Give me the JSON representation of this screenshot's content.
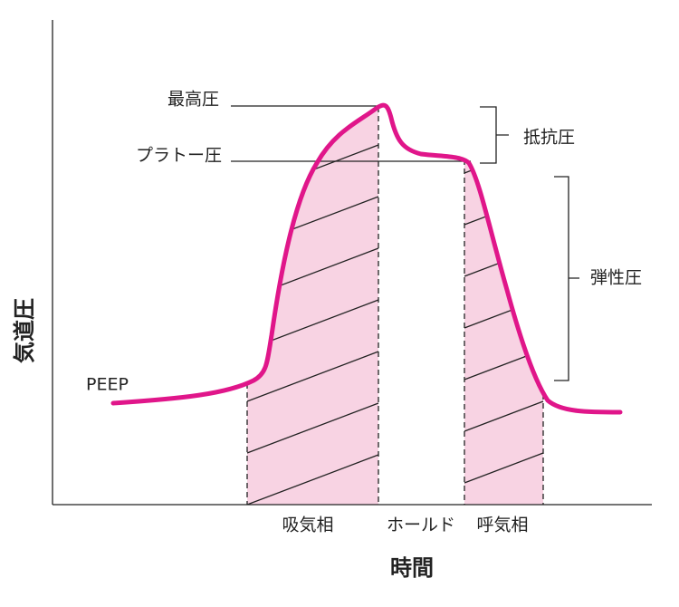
{
  "y_axis_label": "気道圧",
  "x_axis_label": "時間",
  "labels": {
    "peak": "最高圧",
    "plateau": "プラトー圧",
    "resistive": "抵抗圧",
    "elastic": "弾性圧",
    "peep": "PEEP"
  },
  "phases": [
    "吸気相",
    "ホールド",
    "呼気相"
  ]
}
